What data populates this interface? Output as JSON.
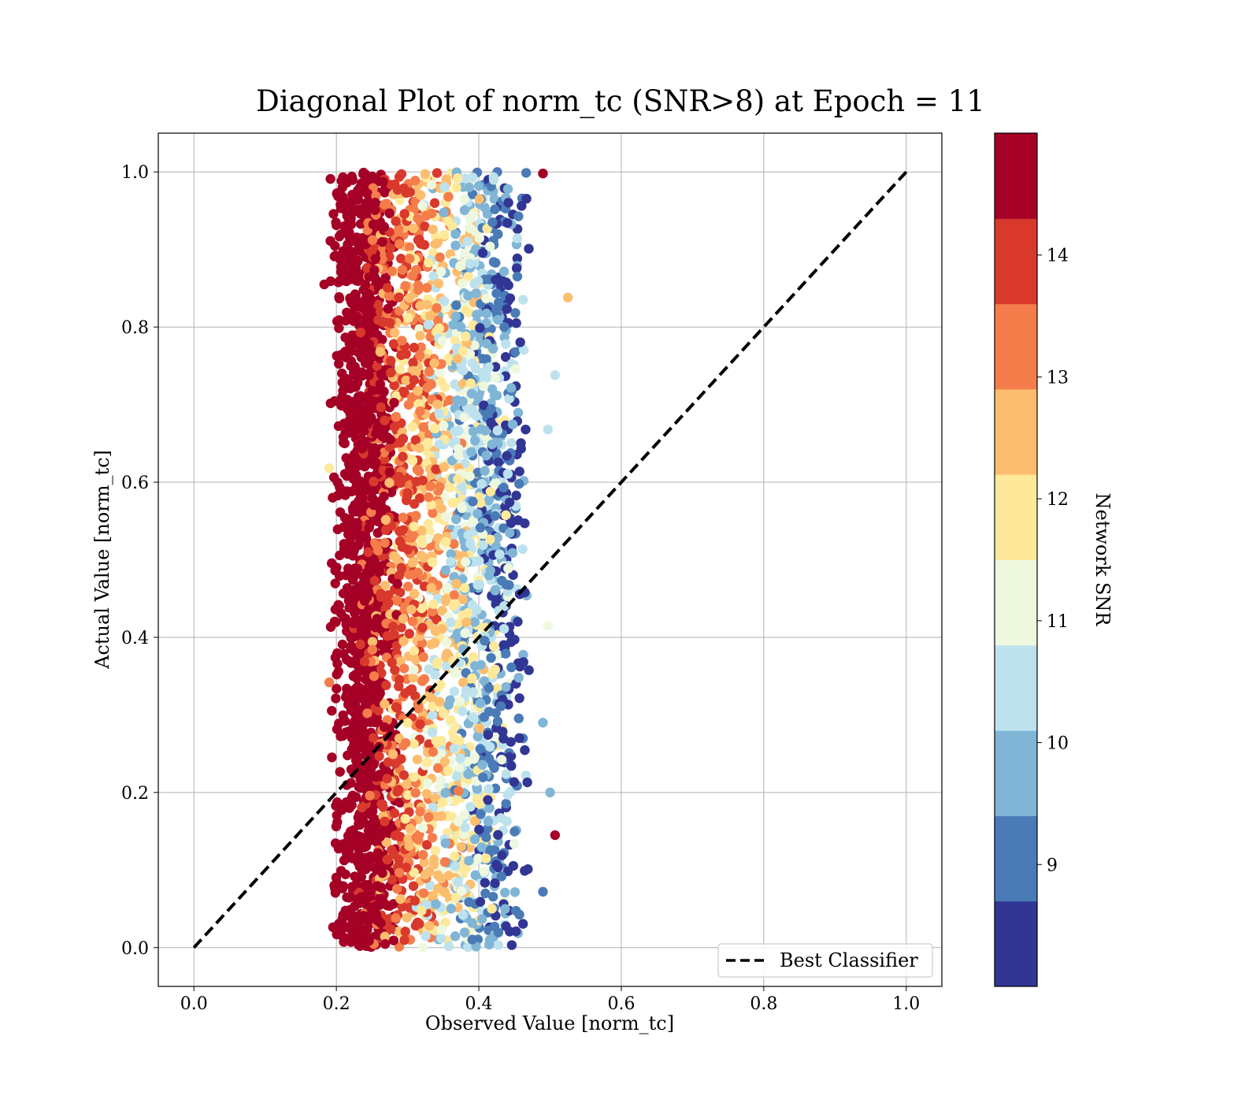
{
  "chart_data": {
    "type": "scatter",
    "title": "Diagonal Plot of norm_tc (SNR>8) at Epoch = 11",
    "xlabel": "Observed Value [norm_tc]",
    "ylabel": "Actual Value [norm_tc]",
    "xlim": [
      -0.05,
      1.05
    ],
    "ylim": [
      -0.05,
      1.05
    ],
    "x_ticks": [
      "0.0",
      "0.2",
      "0.4",
      "0.6",
      "0.8",
      "1.0"
    ],
    "y_ticks": [
      "0.0",
      "0.2",
      "0.4",
      "0.6",
      "0.8",
      "1.0"
    ],
    "grid": true,
    "legend": {
      "position": "lower-right",
      "entries": [
        {
          "label": "Best Classifier",
          "style": "dashed",
          "color": "#000000"
        }
      ]
    },
    "reference_line": {
      "name": "Best Classifier",
      "x": [
        0.0,
        1.0
      ],
      "y": [
        0.0,
        1.0
      ]
    },
    "colorbar": {
      "label": "Network SNR",
      "range": [
        8,
        15
      ],
      "ticks": [
        "9",
        "10",
        "11",
        "12",
        "13",
        "14"
      ],
      "bands": [
        {
          "from": 8.0,
          "to": 8.7,
          "color": "#313695"
        },
        {
          "from": 8.7,
          "to": 9.4,
          "color": "#4a7bb7"
        },
        {
          "from": 9.4,
          "to": 10.1,
          "color": "#80b5d6"
        },
        {
          "from": 10.1,
          "to": 10.8,
          "color": "#bde2ee"
        },
        {
          "from": 10.8,
          "to": 11.5,
          "color": "#eef8df"
        },
        {
          "from": 11.5,
          "to": 12.2,
          "color": "#fee99b"
        },
        {
          "from": 12.2,
          "to": 12.9,
          "color": "#fdbd6f"
        },
        {
          "from": 12.9,
          "to": 13.6,
          "color": "#f47d4b"
        },
        {
          "from": 13.6,
          "to": 14.3,
          "color": "#d8392c"
        },
        {
          "from": 14.3,
          "to": 15.0,
          "color": "#a50026"
        }
      ]
    },
    "scatter_bands": [
      {
        "snr_bin": "14.3-15",
        "color": "#a50026",
        "x_range": [
          0.19,
          0.29
        ],
        "y_range": [
          0.0,
          1.0
        ],
        "points": 1400
      },
      {
        "snr_bin": "13.6-14.3",
        "color": "#d8392c",
        "x_range": [
          0.22,
          0.35
        ],
        "y_range": [
          0.0,
          1.0
        ],
        "points": 320
      },
      {
        "snr_bin": "12.9-13.6",
        "color": "#f47d4b",
        "x_range": [
          0.23,
          0.38
        ],
        "y_range": [
          0.0,
          1.0
        ],
        "points": 300
      },
      {
        "snr_bin": "12.2-12.9",
        "color": "#fdbd6f",
        "x_range": [
          0.25,
          0.41
        ],
        "y_range": [
          0.0,
          1.0
        ],
        "points": 300
      },
      {
        "snr_bin": "11.5-12.2",
        "color": "#fee99b",
        "x_range": [
          0.27,
          0.44
        ],
        "y_range": [
          0.0,
          1.0
        ],
        "points": 280
      },
      {
        "snr_bin": "10.8-11.5",
        "color": "#eef8df",
        "x_range": [
          0.3,
          0.46
        ],
        "y_range": [
          0.0,
          1.0
        ],
        "points": 200
      },
      {
        "snr_bin": "10.1-10.8",
        "color": "#bde2ee",
        "x_range": [
          0.31,
          0.47
        ],
        "y_range": [
          0.0,
          1.0
        ],
        "points": 260
      },
      {
        "snr_bin": "9.4-10.1",
        "color": "#80b5d6",
        "x_range": [
          0.33,
          0.47
        ],
        "y_range": [
          0.0,
          1.0
        ],
        "points": 260
      },
      {
        "snr_bin": "8.7-9.4",
        "color": "#4a7bb7",
        "x_range": [
          0.36,
          0.47
        ],
        "y_range": [
          0.0,
          1.0
        ],
        "points": 200
      },
      {
        "snr_bin": "8-8.7",
        "color": "#313695",
        "x_range": [
          0.39,
          0.48
        ],
        "y_range": [
          0.0,
          1.0
        ],
        "points": 170
      }
    ],
    "marker_color_overlay": "#a50026",
    "outliers": [
      {
        "x": 0.525,
        "y": 0.838,
        "snr": 12.5
      },
      {
        "x": 0.507,
        "y": 0.145,
        "snr": 14.8
      },
      {
        "x": 0.507,
        "y": 0.738,
        "snr": 10.5
      },
      {
        "x": 0.49,
        "y": 0.072,
        "snr": 9.3
      },
      {
        "x": 0.497,
        "y": 0.668,
        "snr": 10.5
      },
      {
        "x": 0.49,
        "y": 0.29,
        "snr": 9.8
      },
      {
        "x": 0.497,
        "y": 0.415,
        "snr": 11.0
      },
      {
        "x": 0.49,
        "y": 0.998,
        "snr": 14.8
      },
      {
        "x": 0.5,
        "y": 0.2,
        "snr": 9.8
      },
      {
        "x": 0.183,
        "y": 0.855,
        "snr": 14.8
      },
      {
        "x": 0.19,
        "y": 0.342,
        "snr": 13.2
      },
      {
        "x": 0.19,
        "y": 0.618,
        "snr": 12.0
      }
    ]
  }
}
